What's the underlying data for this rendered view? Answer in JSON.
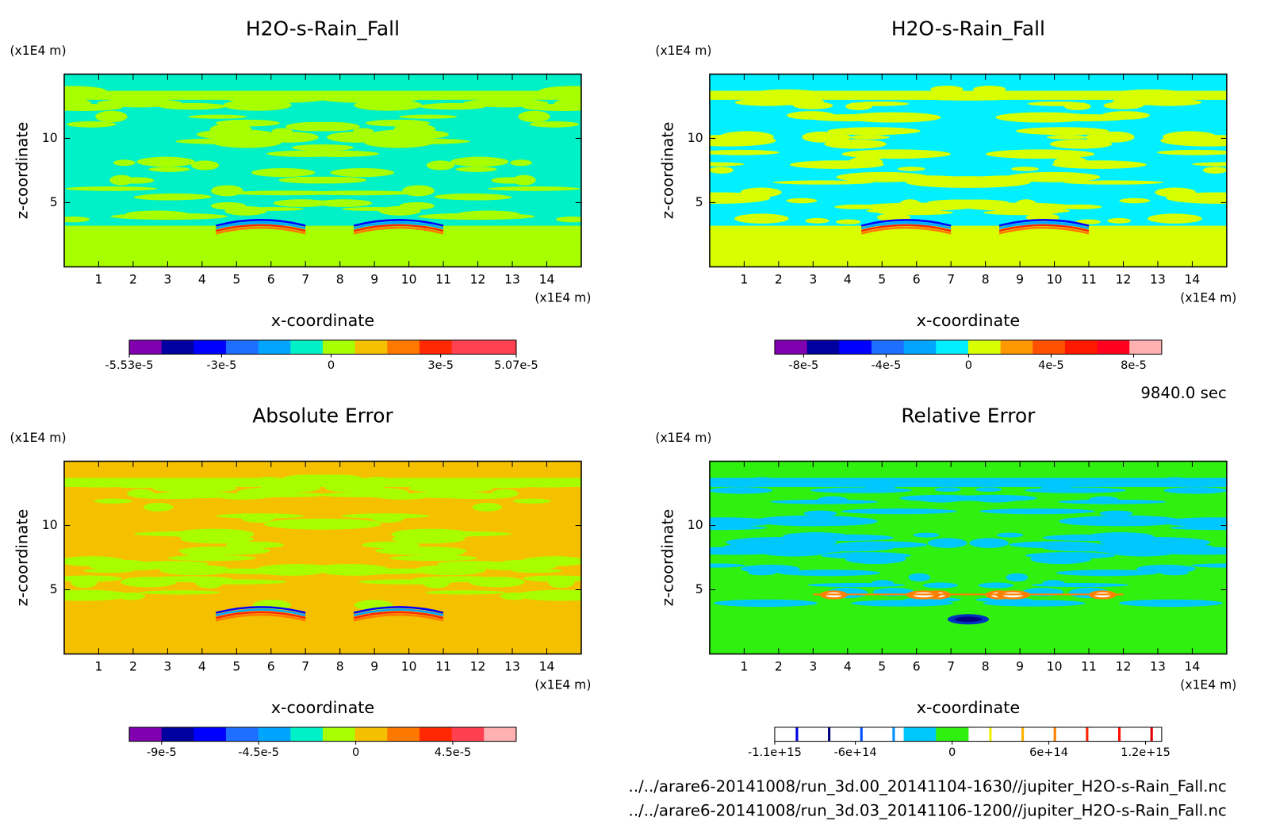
{
  "chart_data": [
    {
      "type": "contour",
      "title": "H2O-s-Rain_Fall",
      "x_label": "x-coordinate",
      "y_label": "z-coordinate",
      "x_unit": "(x1E4 m)",
      "y_unit": "(x1E4 m)",
      "xlim": [
        0,
        15
      ],
      "ylim": [
        0,
        15
      ],
      "xticks": [
        1,
        2,
        3,
        4,
        5,
        6,
        7,
        8,
        9,
        10,
        11,
        12,
        13,
        14
      ],
      "yticks": [
        5,
        10
      ],
      "colorbar": {
        "clim": [
          -5.53e-05,
          5.07e-05
        ],
        "ticks": [
          {
            "value": -5.53e-05,
            "label": "-5.53e-5"
          },
          {
            "value": -3e-05,
            "label": "-3e-5"
          },
          0,
          {
            "value": 3e-05,
            "label": "3e-5"
          },
          {
            "value": 5.07e-05,
            "label": "5.07e-5"
          }
        ],
        "colors": [
          "#8000b0",
          "#0000a0",
          "#0000ff",
          "#1e6eff",
          "#00a5ff",
          "#00f0c8",
          "#a8ff00",
          "#f5c000",
          "#ff7800",
          "#ff2800",
          "#ff4050",
          "#ff4050"
        ]
      }
    },
    {
      "type": "contour",
      "title": "H2O-s-Rain_Fall",
      "x_label": "x-coordinate",
      "y_label": "z-coordinate",
      "x_unit": "(x1E4 m)",
      "y_unit": "(x1E4 m)",
      "xlim": [
        0,
        15
      ],
      "ylim": [
        0,
        15
      ],
      "xticks": [
        1,
        2,
        3,
        4,
        5,
        6,
        7,
        8,
        9,
        10,
        11,
        12,
        13,
        14
      ],
      "yticks": [
        5,
        10
      ],
      "colorbar": {
        "clim": [
          -9.4e-05,
          9.36e-05
        ],
        "ticks": [
          {
            "value": -8e-05,
            "label": "-8e-5"
          },
          {
            "value": -4e-05,
            "label": "-4e-5"
          },
          0,
          {
            "value": 4e-05,
            "label": "4e-5"
          },
          {
            "value": 8e-05,
            "label": "8e-5"
          }
        ],
        "colors": [
          "#8000b0",
          "#0000a0",
          "#0000ff",
          "#1e6eff",
          "#00a5ff",
          "#00f0ff",
          "#d8ff00",
          "#ff9800",
          "#ff5000",
          "#ff1800",
          "#ff0020",
          "#ffb0b0"
        ]
      }
    },
    {
      "type": "contour",
      "title": "Absolute Error",
      "x_label": "x-coordinate",
      "y_label": "z-coordinate",
      "x_unit": "(x1E4 m)",
      "y_unit": "(x1E4 m)",
      "xlim": [
        0,
        15
      ],
      "ylim": [
        0,
        15
      ],
      "xticks": [
        1,
        2,
        3,
        4,
        5,
        6,
        7,
        8,
        9,
        10,
        11,
        12,
        13,
        14
      ],
      "yticks": [
        5,
        10
      ],
      "colorbar": {
        "clim": [
          -0.000105,
          7.44e-05
        ],
        "ticks": [
          {
            "value": -9e-05,
            "label": "-9e-5"
          },
          {
            "value": -4.5e-05,
            "label": "-4.5e-5"
          },
          0,
          {
            "value": 4.5e-05,
            "label": "4.5e-5"
          }
        ],
        "colors": [
          "#8000b0",
          "#0000a0",
          "#0000ff",
          "#1e6eff",
          "#00a5ff",
          "#00f0c8",
          "#a8ff00",
          "#f5c000",
          "#ff7800",
          "#ff2800",
          "#ff4050",
          "#ffb0b0"
        ]
      }
    },
    {
      "type": "contour",
      "title": "Relative Error",
      "x_label": "x-coordinate",
      "y_label": "z-coordinate",
      "x_unit": "(x1E4 m)",
      "y_unit": "(x1E4 m)",
      "xlim": [
        0,
        15
      ],
      "ylim": [
        0,
        15
      ],
      "xticks": [
        1,
        2,
        3,
        4,
        5,
        6,
        7,
        8,
        9,
        10,
        11,
        12,
        13,
        14
      ],
      "yticks": [
        5,
        10
      ],
      "colorbar": {
        "levels": [
          -1100000000000000.0,
          -900000000000000.0,
          -700000000000000.0,
          -500000000000000.0,
          -300000000000000.0,
          -100000000000000.0,
          100000000000000.0,
          300000000000000.0,
          500000000000000.0,
          700000000000000.0,
          900000000000000.0,
          1100000000000000.0,
          1300000000000000.0
        ],
        "ticks": [
          {
            "value": -1100000000000000.0,
            "label": "-1.1e+15"
          },
          {
            "value": -600000000000000.0,
            "label": "-6e+14"
          },
          0,
          {
            "value": 600000000000000.0,
            "label": "6e+14"
          },
          {
            "value": 1200000000000000.0,
            "label": "1.2e+15"
          }
        ],
        "colors": [
          "#0000e0",
          "#000080",
          "#0050ff",
          "#0090ff",
          "#00c8ff",
          "#30f010",
          "#f0f000",
          "#ffb000",
          "#ff8000",
          "#ff2000",
          "#ff1000",
          "#e00000"
        ],
        "filled_bins": [
          4,
          5
        ]
      }
    }
  ],
  "time": "9840.0 sec",
  "files": [
    "../../arare6-20141008/run_3d.00_20141104-1630//jupiter_H2O-s-Rain_Fall.nc",
    "../../arare6-20141008/run_3d.03_20141106-1200//jupiter_H2O-s-Rain_Fall.nc"
  ]
}
